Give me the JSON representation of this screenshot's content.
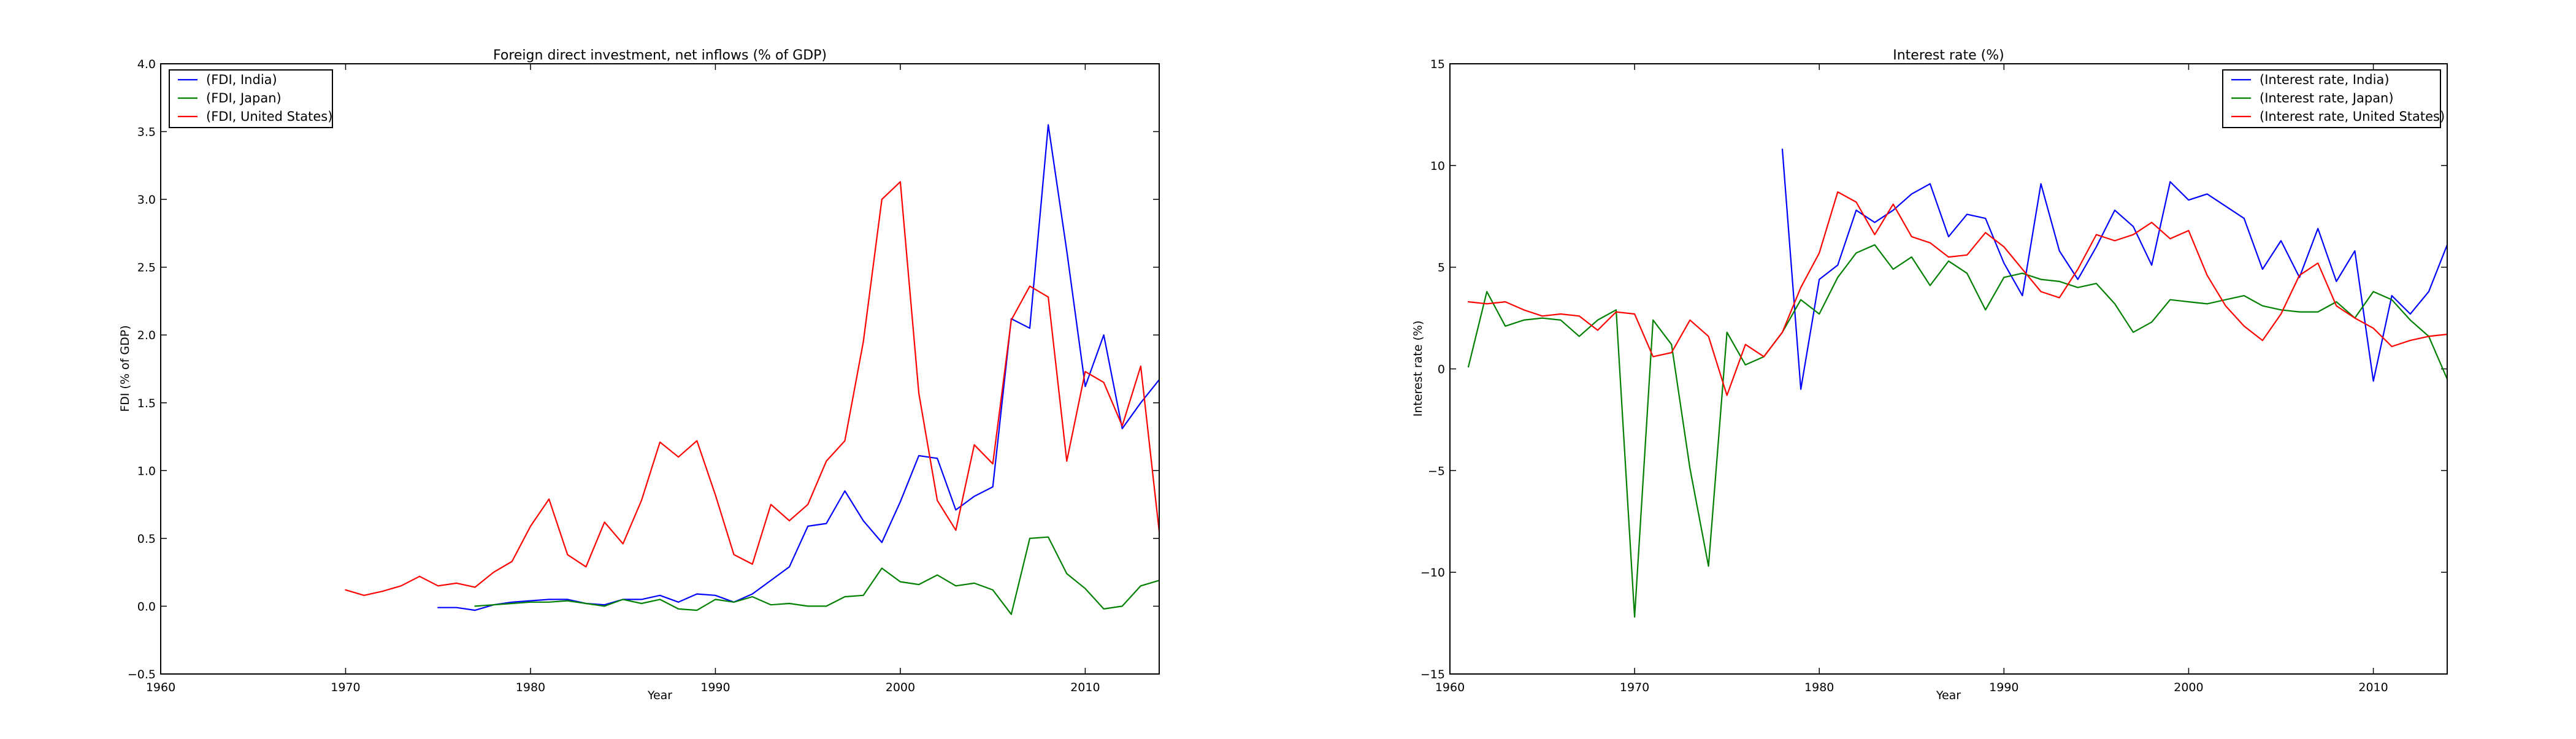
{
  "chart_data": [
    {
      "type": "line",
      "title": "Foreign direct investment, net inflows (% of GDP)",
      "xlabel": "Year",
      "ylabel": "FDI (% of GDP)",
      "xlim": [
        1960,
        2014
      ],
      "ylim": [
        -0.5,
        4.0
      ],
      "xticks": [
        1960,
        1970,
        1980,
        1990,
        2000,
        2010
      ],
      "yticks": [
        -0.5,
        0.0,
        0.5,
        1.0,
        1.5,
        2.0,
        2.5,
        3.0,
        3.5,
        4.0
      ],
      "ytick_labels": [
        "−0.5",
        "0.0",
        "0.5",
        "1.0",
        "1.5",
        "2.0",
        "2.5",
        "3.0",
        "3.5",
        "4.0"
      ],
      "grid": false,
      "legend_position": "top-left",
      "series": [
        {
          "name": "(FDI, India)",
          "color": "#0000ff",
          "x": [
            1975,
            1976,
            1977,
            1978,
            1979,
            1980,
            1981,
            1982,
            1983,
            1984,
            1985,
            1986,
            1987,
            1988,
            1989,
            1990,
            1991,
            1992,
            1993,
            1994,
            1995,
            1996,
            1997,
            1998,
            1999,
            2000,
            2001,
            2002,
            2003,
            2004,
            2005,
            2006,
            2007,
            2008,
            2009,
            2010,
            2011,
            2012,
            2013,
            2014
          ],
          "y": [
            -0.01,
            -0.01,
            -0.03,
            0.01,
            0.03,
            0.04,
            0.05,
            0.05,
            0.02,
            0.01,
            0.05,
            0.05,
            0.08,
            0.03,
            0.09,
            0.08,
            0.03,
            0.09,
            0.19,
            0.29,
            0.59,
            0.61,
            0.85,
            0.63,
            0.47,
            0.77,
            1.11,
            1.09,
            0.71,
            0.81,
            0.88,
            2.12,
            2.05,
            3.55,
            2.62,
            1.62,
            2.0,
            1.31,
            1.5,
            1.67
          ]
        },
        {
          "name": "(FDI, Japan)",
          "color": "#008000",
          "x": [
            1977,
            1978,
            1979,
            1980,
            1981,
            1982,
            1983,
            1984,
            1985,
            1986,
            1987,
            1988,
            1989,
            1990,
            1991,
            1992,
            1993,
            1994,
            1995,
            1996,
            1997,
            1998,
            1999,
            2000,
            2001,
            2002,
            2003,
            2004,
            2005,
            2006,
            2007,
            2008,
            2009,
            2010,
            2011,
            2012,
            2013,
            2014
          ],
          "y": [
            0.0,
            0.01,
            0.02,
            0.03,
            0.03,
            0.04,
            0.02,
            0.0,
            0.05,
            0.02,
            0.05,
            -0.02,
            -0.03,
            0.05,
            0.03,
            0.07,
            0.01,
            0.02,
            0.0,
            0.0,
            0.07,
            0.08,
            0.28,
            0.18,
            0.16,
            0.23,
            0.15,
            0.17,
            0.12,
            -0.06,
            0.5,
            0.51,
            0.24,
            0.13,
            -0.02,
            0.0,
            0.15,
            0.19
          ]
        },
        {
          "name": "(FDI, United States)",
          "color": "#ff0000",
          "x": [
            1970,
            1971,
            1972,
            1973,
            1974,
            1975,
            1976,
            1977,
            1978,
            1979,
            1980,
            1981,
            1982,
            1983,
            1984,
            1985,
            1986,
            1987,
            1988,
            1989,
            1990,
            1991,
            1992,
            1993,
            1994,
            1995,
            1996,
            1997,
            1998,
            1999,
            2000,
            2001,
            2002,
            2003,
            2004,
            2005,
            2006,
            2007,
            2008,
            2009,
            2010,
            2011,
            2012,
            2013,
            2014
          ],
          "y": [
            0.12,
            0.08,
            0.11,
            0.15,
            0.22,
            0.15,
            0.17,
            0.14,
            0.25,
            0.33,
            0.59,
            0.79,
            0.38,
            0.29,
            0.62,
            0.46,
            0.78,
            1.21,
            1.1,
            1.22,
            0.82,
            0.38,
            0.31,
            0.75,
            0.63,
            0.75,
            1.07,
            1.22,
            1.95,
            3.0,
            3.13,
            1.57,
            0.78,
            0.56,
            1.19,
            1.05,
            2.11,
            2.36,
            2.28,
            1.07,
            1.73,
            1.65,
            1.33,
            1.77,
            0.55
          ]
        }
      ]
    },
    {
      "type": "line",
      "title": "Interest rate (%)",
      "xlabel": "Year",
      "ylabel": "Interest rate (%)",
      "xlim": [
        1960,
        2014
      ],
      "ylim": [
        -15,
        15
      ],
      "xticks": [
        1960,
        1970,
        1980,
        1990,
        2000,
        2010
      ],
      "yticks": [
        -15,
        -10,
        -5,
        0,
        5,
        10,
        15
      ],
      "ytick_labels": [
        "−15",
        "−10",
        "−5",
        "0",
        "5",
        "10",
        "15"
      ],
      "grid": false,
      "legend_position": "top-right",
      "series": [
        {
          "name": "(Interest rate, India)",
          "color": "#0000ff",
          "x": [
            1978,
            1979,
            1980,
            1981,
            1982,
            1983,
            1984,
            1985,
            1986,
            1987,
            1988,
            1989,
            1990,
            1991,
            1992,
            1993,
            1994,
            1995,
            1996,
            1997,
            1998,
            1999,
            2000,
            2001,
            2002,
            2003,
            2004,
            2005,
            2006,
            2007,
            2008,
            2009,
            2010,
            2011,
            2012,
            2013,
            2014
          ],
          "y": [
            10.8,
            -1.0,
            4.4,
            5.1,
            7.8,
            7.2,
            7.8,
            8.6,
            9.1,
            6.5,
            7.6,
            7.4,
            5.2,
            3.6,
            9.1,
            5.8,
            4.4,
            6.0,
            7.8,
            7.0,
            5.1,
            9.2,
            8.3,
            8.6,
            8.0,
            7.4,
            4.9,
            6.3,
            4.5,
            6.9,
            4.3,
            5.8,
            -0.6,
            3.6,
            2.7,
            3.8,
            6.1
          ]
        },
        {
          "name": "(Interest rate, Japan)",
          "color": "#008000",
          "x": [
            1961,
            1962,
            1963,
            1964,
            1965,
            1966,
            1967,
            1968,
            1969,
            1970,
            1971,
            1972,
            1973,
            1974,
            1975,
            1976,
            1977,
            1978,
            1979,
            1980,
            1981,
            1982,
            1983,
            1984,
            1985,
            1986,
            1987,
            1988,
            1989,
            1990,
            1991,
            1992,
            1993,
            1994,
            1995,
            1996,
            1997,
            1998,
            1999,
            2000,
            2001,
            2002,
            2003,
            2004,
            2005,
            2006,
            2007,
            2008,
            2009,
            2010,
            2011,
            2012,
            2013,
            2014
          ],
          "y": [
            0.1,
            3.8,
            2.1,
            2.4,
            2.5,
            2.4,
            1.6,
            2.4,
            2.9,
            -12.2,
            2.4,
            1.2,
            -4.9,
            -9.7,
            1.8,
            0.2,
            0.6,
            1.8,
            3.4,
            2.7,
            4.5,
            5.7,
            6.1,
            4.9,
            5.5,
            4.1,
            5.3,
            4.7,
            2.9,
            4.5,
            4.7,
            4.4,
            4.3,
            4.0,
            4.2,
            3.2,
            1.8,
            2.3,
            3.4,
            3.3,
            3.2,
            3.4,
            3.6,
            3.1,
            2.9,
            2.8,
            2.8,
            3.3,
            2.5,
            3.8,
            3.4,
            2.4,
            1.6,
            -0.5
          ]
        },
        {
          "name": "(Interest rate, United States)",
          "color": "#ff0000",
          "x": [
            1961,
            1962,
            1963,
            1964,
            1965,
            1966,
            1967,
            1968,
            1969,
            1970,
            1971,
            1972,
            1973,
            1974,
            1975,
            1976,
            1977,
            1978,
            1979,
            1980,
            1981,
            1982,
            1983,
            1984,
            1985,
            1986,
            1987,
            1988,
            1989,
            1990,
            1991,
            1992,
            1993,
            1994,
            1995,
            1996,
            1997,
            1998,
            1999,
            2000,
            2001,
            2002,
            2003,
            2004,
            2005,
            2006,
            2007,
            2008,
            2009,
            2010,
            2011,
            2012,
            2013,
            2014
          ],
          "y": [
            3.3,
            3.2,
            3.3,
            2.9,
            2.6,
            2.7,
            2.6,
            1.9,
            2.8,
            2.7,
            0.6,
            0.8,
            2.4,
            1.6,
            -1.3,
            1.2,
            0.6,
            1.8,
            4.0,
            5.7,
            8.7,
            8.2,
            6.6,
            8.1,
            6.5,
            6.2,
            5.5,
            5.6,
            6.7,
            6.0,
            4.9,
            3.8,
            3.5,
            4.9,
            6.6,
            6.3,
            6.6,
            7.2,
            6.4,
            6.8,
            4.6,
            3.1,
            2.1,
            1.4,
            2.7,
            4.6,
            5.2,
            3.1,
            2.5,
            2.0,
            1.1,
            1.4,
            1.6,
            1.7
          ]
        }
      ]
    }
  ]
}
